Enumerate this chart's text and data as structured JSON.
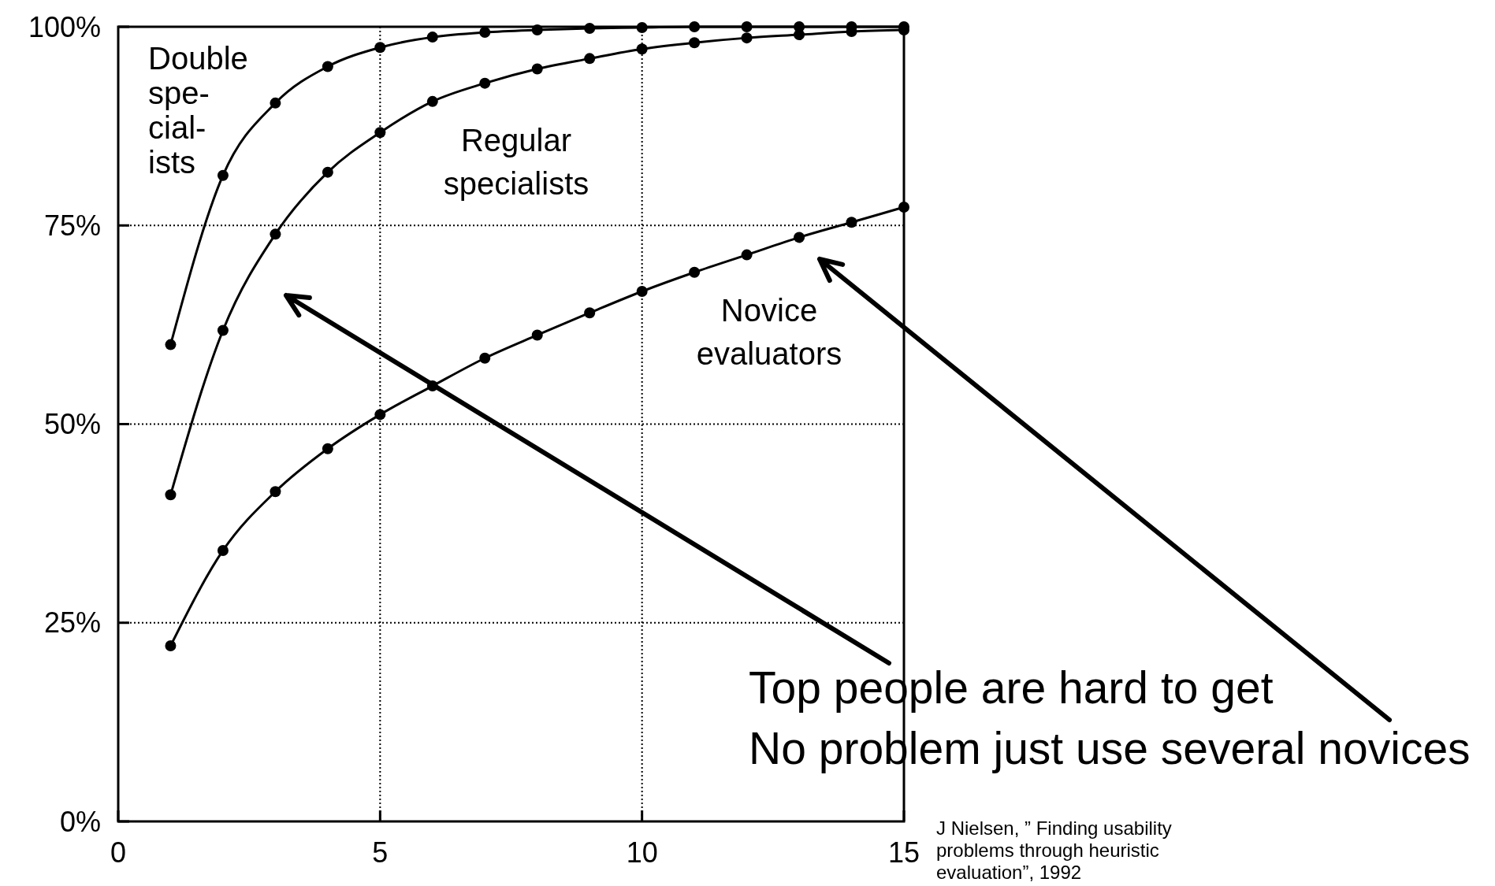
{
  "chart_data": {
    "type": "line",
    "x": [
      1,
      2,
      3,
      4,
      5,
      6,
      7,
      8,
      9,
      10,
      11,
      12,
      13,
      14,
      15
    ],
    "series": [
      {
        "name": "Double\nspe-\ncial-\nists",
        "color": "#000000",
        "values": [
          60.0,
          81.3,
          90.4,
          95.0,
          97.4,
          98.7,
          99.3,
          99.6,
          99.8,
          99.9,
          100,
          100,
          100,
          100,
          100
        ]
      },
      {
        "name": "Regular\nspecialists",
        "color": "#000000",
        "values": [
          41.1,
          61.8,
          73.9,
          81.7,
          86.7,
          90.6,
          92.9,
          94.7,
          96.0,
          97.2,
          98.0,
          98.6,
          99.0,
          99.4,
          99.6
        ]
      },
      {
        "name": "Novice\nevaluators",
        "color": "#000000",
        "values": [
          22.1,
          34.1,
          41.5,
          46.9,
          51.2,
          54.8,
          58.3,
          61.2,
          64.0,
          66.7,
          69.1,
          71.3,
          73.5,
          75.4,
          77.3
        ]
      }
    ],
    "xlim": [
      0,
      15
    ],
    "xticks": [
      0,
      5,
      10,
      15
    ],
    "ylim": [
      0,
      100
    ],
    "yticks": [
      {
        "value": 0,
        "label": "0%"
      },
      {
        "value": 25,
        "label": "25%"
      },
      {
        "value": 50,
        "label": "50%"
      },
      {
        "value": 75,
        "label": "75%"
      },
      {
        "value": 100,
        "label": "100%"
      }
    ],
    "grid": true,
    "marker": "circle",
    "line_style": "solid",
    "annotations": [
      "Top people are hard to get",
      "No problem just use several novices",
      "J Nielsen, ” Finding usability problems through heuristic evaluation”, 1992"
    ]
  }
}
